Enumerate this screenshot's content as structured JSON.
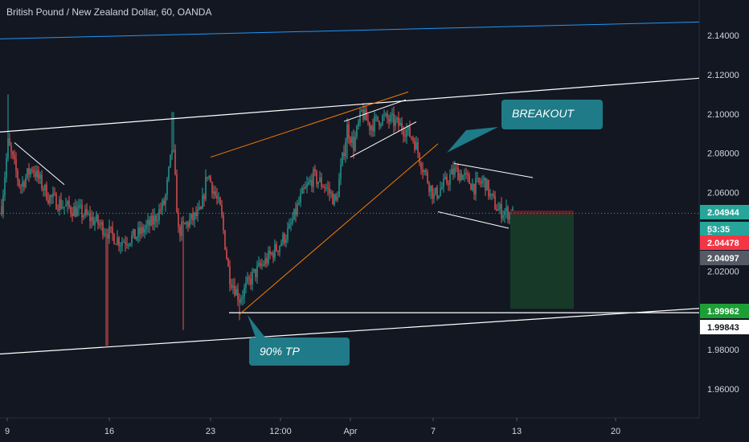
{
  "header": {
    "title": "British Pound / New Zealand Dollar, 60, OANDA"
  },
  "chart_data": {
    "type": "candlestick",
    "symbol": "British Pound / New Zealand Dollar",
    "interval": "60",
    "broker": "OANDA",
    "ylim": [
      1.945,
      2.165
    ],
    "y_ticks": [
      "2.14000",
      "2.12000",
      "2.10000",
      "2.08000",
      "2.06000",
      "2.02000",
      "1.98000",
      "1.96000"
    ],
    "x_ticks": [
      "9",
      "16",
      "23",
      "12:00",
      "Apr",
      "7",
      "13",
      "20"
    ],
    "price_labels": [
      {
        "text": "2.04944",
        "value": 2.04944,
        "color": "#26a69a"
      },
      {
        "text": "53:35",
        "value": 2.0472,
        "color": "#26a69a"
      },
      {
        "text": "2",
        "value": 2.0459,
        "color": "#131722"
      },
      {
        "text": "2.04478",
        "value": 2.04478,
        "color": "#f23645"
      },
      {
        "text": "2.04097",
        "value": 2.04097,
        "color": "#555a66"
      },
      {
        "text": "1.99962",
        "value": 1.99962,
        "color": "#1e9f36"
      },
      {
        "text": "1.99843",
        "value": 1.99843,
        "color": "#ffffff"
      }
    ],
    "annotations": [
      {
        "text": "BREAKOUT"
      },
      {
        "text": "90% TP"
      }
    ],
    "trade_box": {
      "entry": 2.0488,
      "stop": 2.0508,
      "target": 2.0008
    },
    "colors": {
      "up": "#26a69a",
      "down": "#ef5350",
      "background": "#131722",
      "axis_text": "#d1d4dc",
      "callout": "#1e7b87"
    }
  }
}
